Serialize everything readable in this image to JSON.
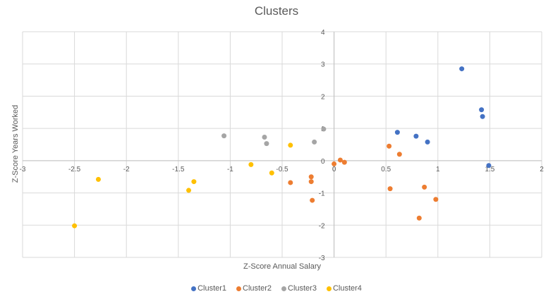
{
  "chart_data": {
    "type": "scatter",
    "title": "Clusters",
    "xlabel": "Z-Score Annual Salary",
    "ylabel": "Z-Score Years Worked",
    "xlim": [
      -3,
      2
    ],
    "ylim": [
      -3,
      4
    ],
    "xticks": [
      "-3",
      "-2.5",
      "-2",
      "-1.5",
      "-1",
      "-0.5",
      "0",
      "0.5",
      "1",
      "1.5",
      "2"
    ],
    "xtick_values": [
      -3,
      -2.5,
      -2,
      -1.5,
      -1,
      -0.5,
      0,
      0.5,
      1,
      1.5,
      2
    ],
    "yticks": [
      "-3",
      "-2",
      "-1",
      "0",
      "1",
      "2",
      "3",
      "4"
    ],
    "ytick_values": [
      -3,
      -2,
      -1,
      0,
      1,
      2,
      3,
      4
    ],
    "grid": true,
    "legend_position": "bottom",
    "series": [
      {
        "name": "Cluster1",
        "color": "#4472C4",
        "points": [
          [
            1.23,
            2.85
          ],
          [
            1.42,
            1.58
          ],
          [
            1.43,
            1.37
          ],
          [
            0.61,
            0.88
          ],
          [
            0.79,
            0.76
          ],
          [
            0.9,
            0.58
          ],
          [
            1.49,
            -0.15
          ]
        ]
      },
      {
        "name": "Cluster2",
        "color": "#ED7D31",
        "points": [
          [
            0.53,
            0.45
          ],
          [
            0.63,
            0.2
          ],
          [
            0.06,
            0.02
          ],
          [
            0.1,
            -0.05
          ],
          [
            0.0,
            -0.1
          ],
          [
            -0.22,
            -0.5
          ],
          [
            -0.22,
            -0.65
          ],
          [
            -0.42,
            -0.68
          ],
          [
            -0.21,
            -1.23
          ],
          [
            0.54,
            -0.87
          ],
          [
            0.87,
            -0.82
          ],
          [
            0.98,
            -1.2
          ],
          [
            0.82,
            -1.78
          ]
        ]
      },
      {
        "name": "Cluster3",
        "color": "#A5A5A5",
        "points": [
          [
            -1.06,
            0.77
          ],
          [
            -0.67,
            0.73
          ],
          [
            -0.65,
            0.53
          ],
          [
            -0.19,
            0.58
          ],
          [
            -0.1,
            0.98
          ]
        ]
      },
      {
        "name": "Cluster4",
        "color": "#FFC000",
        "points": [
          [
            -0.42,
            0.48
          ],
          [
            -0.8,
            -0.12
          ],
          [
            -0.6,
            -0.38
          ],
          [
            -1.35,
            -0.65
          ],
          [
            -1.4,
            -0.92
          ],
          [
            -2.27,
            -0.58
          ],
          [
            -2.5,
            -2.02
          ]
        ]
      }
    ]
  }
}
